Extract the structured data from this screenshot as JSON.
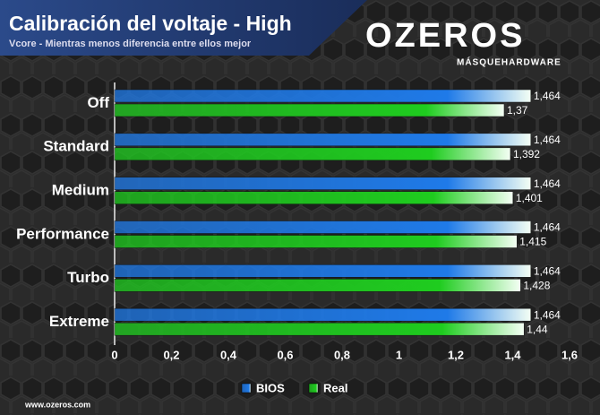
{
  "chart_data": {
    "type": "hbar",
    "title": "Calibración del voltaje - High",
    "subtitle": "Vcore - Mientras menos diferencia entre ellos mejor",
    "categories": [
      "Off",
      "Standard",
      "Medium",
      "Performance",
      "Turbo",
      "Extreme"
    ],
    "series": [
      {
        "name": "BIOS",
        "color": "#1f7ae8",
        "values": [
          1.464,
          1.464,
          1.464,
          1.464,
          1.464,
          1.464
        ],
        "value_labels": [
          "1,464",
          "1,464",
          "1,464",
          "1,464",
          "1,464",
          "1,464"
        ]
      },
      {
        "name": "Real",
        "color": "#1fcc1f",
        "values": [
          1.37,
          1.392,
          1.401,
          1.415,
          1.428,
          1.44
        ],
        "value_labels": [
          "1,37",
          "1,392",
          "1,401",
          "1,415",
          "1,428",
          "1,44"
        ]
      }
    ],
    "xlim": [
      0,
      1.6
    ],
    "xticks": [
      0,
      {
        "value": 0.2,
        "label": "0,2"
      },
      {
        "value": 0.4,
        "label": "0,4"
      },
      {
        "value": 0.6,
        "label": "0,6"
      },
      {
        "value": 0.8,
        "label": "0,8"
      },
      1,
      {
        "value": 1.2,
        "label": "1,2"
      },
      {
        "value": 1.4,
        "label": "1,4"
      },
      {
        "value": 1.6,
        "label": "1,6"
      }
    ],
    "grid": false,
    "legend": "bottom"
  },
  "brand": {
    "name": "OZEROS",
    "tagline": "MÁSQUEHARDWARE",
    "url": "www.ozeros.com"
  }
}
